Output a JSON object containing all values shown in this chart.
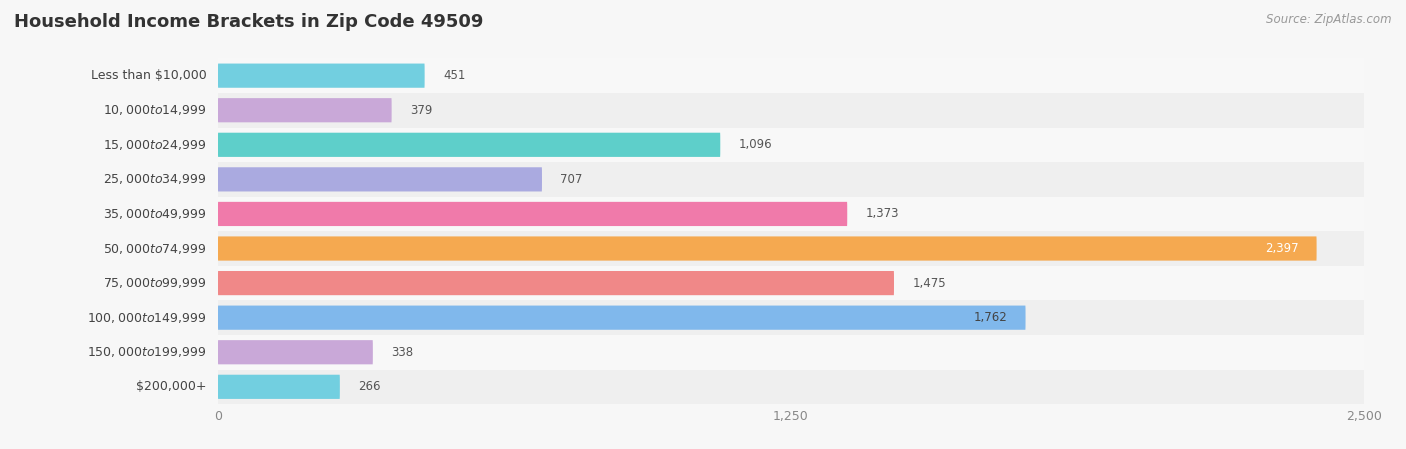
{
  "title": "Household Income Brackets in Zip Code 49509",
  "source": "Source: ZipAtlas.com",
  "categories": [
    "Less than $10,000",
    "$10,000 to $14,999",
    "$15,000 to $24,999",
    "$25,000 to $34,999",
    "$35,000 to $49,999",
    "$50,000 to $74,999",
    "$75,000 to $99,999",
    "$100,000 to $149,999",
    "$150,000 to $199,999",
    "$200,000+"
  ],
  "values": [
    451,
    379,
    1096,
    707,
    1373,
    2397,
    1475,
    1762,
    338,
    266
  ],
  "bar_colors": [
    "#72cfe0",
    "#c9a8d8",
    "#5ecfca",
    "#aaaae0",
    "#f07aaa",
    "#f5a950",
    "#f08888",
    "#80b8ec",
    "#c9a8d8",
    "#72cfe0"
  ],
  "row_colors": [
    "#ffffff",
    "#f0f0f0"
  ],
  "background_color": "#f7f7f7",
  "xlim": [
    0,
    2500
  ],
  "xticks": [
    0,
    1250,
    2500
  ],
  "title_fontsize": 13,
  "label_fontsize": 9,
  "value_fontsize": 8.5,
  "source_fontsize": 8.5
}
